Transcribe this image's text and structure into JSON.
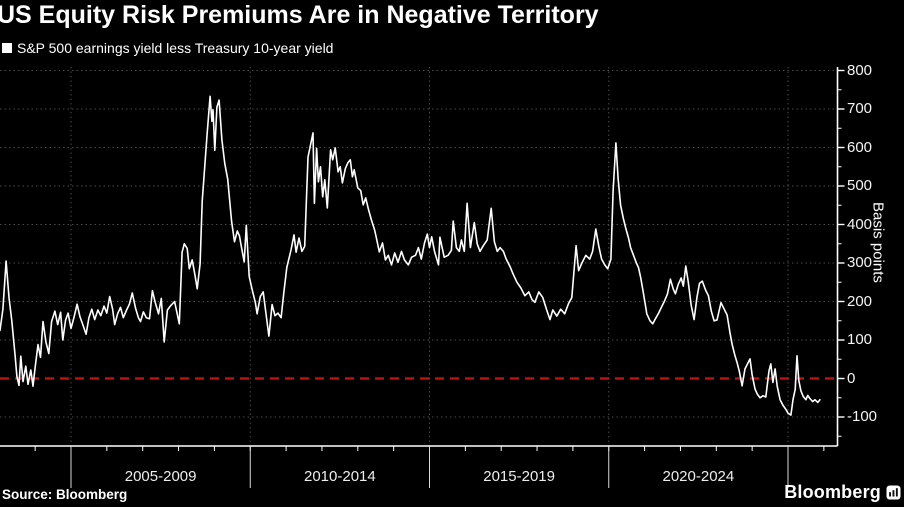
{
  "title": "US Equity Risk Premiums Are in Negative Territory",
  "legend": {
    "marker_icon": "square-swatch-icon",
    "label": "S&P 500 earnings yield less Treasury 10-year yield"
  },
  "source": "Source: Bloomberg",
  "brand": {
    "name": "Bloomberg",
    "icon": "bar-chart-logo-icon"
  },
  "colors": {
    "background": "#000000",
    "line": "#ffffff",
    "zero_line": "#bb1111",
    "gridline": "#4a4a4a",
    "axis": "#ffffff",
    "tick_label": "#f4f4f4",
    "period_separator": "#d9d9d9"
  },
  "chart_data": {
    "type": "line",
    "title": "US Equity Risk Premiums Are in Negative Territory",
    "series_name": "S&P 500 earnings yield less Treasury 10-year yield",
    "xlabel": "",
    "ylabel": "Basis points",
    "ylim": [
      -175,
      808
    ],
    "xlim_years": [
      2003.0,
      2026.4
    ],
    "yticks": [
      800,
      700,
      600,
      500,
      400,
      300,
      200,
      100,
      0,
      -100
    ],
    "y_minor_tick_step": 50,
    "x_period_labels": [
      "2005-2009",
      "2010-2014",
      "2015-2019",
      "2020-2024"
    ],
    "x_period_boundary_years": [
      2005,
      2010,
      2015,
      2020,
      2025
    ],
    "legend_position": "top-left",
    "grid": "dotted",
    "zero_line": {
      "value": 0,
      "style": "dashed",
      "color": "#bb1111"
    },
    "points": [
      [
        2003.02,
        125
      ],
      [
        2003.1,
        180
      ],
      [
        2003.19,
        305
      ],
      [
        2003.27,
        210
      ],
      [
        2003.35,
        150
      ],
      [
        2003.44,
        60
      ],
      [
        2003.49,
        5
      ],
      [
        2003.55,
        -18
      ],
      [
        2003.6,
        58
      ],
      [
        2003.66,
        -8
      ],
      [
        2003.74,
        32
      ],
      [
        2003.8,
        -15
      ],
      [
        2003.88,
        22
      ],
      [
        2003.94,
        -20
      ],
      [
        2004.0,
        28
      ],
      [
        2004.08,
        88
      ],
      [
        2004.15,
        55
      ],
      [
        2004.22,
        148
      ],
      [
        2004.3,
        95
      ],
      [
        2004.38,
        65
      ],
      [
        2004.46,
        148
      ],
      [
        2004.55,
        175
      ],
      [
        2004.63,
        140
      ],
      [
        2004.71,
        172
      ],
      [
        2004.77,
        100
      ],
      [
        2004.85,
        152
      ],
      [
        2004.92,
        170
      ],
      [
        2005.0,
        130
      ],
      [
        2005.08,
        158
      ],
      [
        2005.17,
        193
      ],
      [
        2005.25,
        160
      ],
      [
        2005.33,
        140
      ],
      [
        2005.42,
        115
      ],
      [
        2005.5,
        158
      ],
      [
        2005.58,
        180
      ],
      [
        2005.66,
        153
      ],
      [
        2005.75,
        178
      ],
      [
        2005.83,
        163
      ],
      [
        2005.92,
        188
      ],
      [
        2006.0,
        170
      ],
      [
        2006.08,
        213
      ],
      [
        2006.16,
        180
      ],
      [
        2006.22,
        140
      ],
      [
        2006.3,
        168
      ],
      [
        2006.38,
        185
      ],
      [
        2006.46,
        158
      ],
      [
        2006.55,
        178
      ],
      [
        2006.63,
        193
      ],
      [
        2006.71,
        222
      ],
      [
        2006.8,
        183
      ],
      [
        2006.88,
        158
      ],
      [
        2006.94,
        148
      ],
      [
        2007.02,
        173
      ],
      [
        2007.1,
        158
      ],
      [
        2007.19,
        155
      ],
      [
        2007.27,
        228
      ],
      [
        2007.35,
        198
      ],
      [
        2007.44,
        168
      ],
      [
        2007.52,
        208
      ],
      [
        2007.6,
        95
      ],
      [
        2007.69,
        178
      ],
      [
        2007.77,
        188
      ],
      [
        2007.89,
        200
      ],
      [
        2008.02,
        142
      ],
      [
        2008.1,
        328
      ],
      [
        2008.16,
        350
      ],
      [
        2008.24,
        338
      ],
      [
        2008.3,
        285
      ],
      [
        2008.38,
        308
      ],
      [
        2008.46,
        268
      ],
      [
        2008.52,
        233
      ],
      [
        2008.6,
        298
      ],
      [
        2008.66,
        460
      ],
      [
        2008.74,
        563
      ],
      [
        2008.8,
        638
      ],
      [
        2008.88,
        733
      ],
      [
        2008.93,
        668
      ],
      [
        2008.96,
        698
      ],
      [
        2009.01,
        593
      ],
      [
        2009.07,
        705
      ],
      [
        2009.13,
        723
      ],
      [
        2009.21,
        620
      ],
      [
        2009.29,
        558
      ],
      [
        2009.37,
        518
      ],
      [
        2009.48,
        408
      ],
      [
        2009.56,
        355
      ],
      [
        2009.64,
        383
      ],
      [
        2009.7,
        370
      ],
      [
        2009.75,
        343
      ],
      [
        2009.83,
        303
      ],
      [
        2009.89,
        398
      ],
      [
        2009.97,
        265
      ],
      [
        2010.06,
        228
      ],
      [
        2010.14,
        198
      ],
      [
        2010.19,
        168
      ],
      [
        2010.28,
        213
      ],
      [
        2010.36,
        225
      ],
      [
        2010.44,
        168
      ],
      [
        2010.52,
        110
      ],
      [
        2010.61,
        192
      ],
      [
        2010.69,
        163
      ],
      [
        2010.77,
        170
      ],
      [
        2010.86,
        158
      ],
      [
        2010.94,
        225
      ],
      [
        2011.02,
        288
      ],
      [
        2011.14,
        335
      ],
      [
        2011.22,
        373
      ],
      [
        2011.28,
        328
      ],
      [
        2011.36,
        365
      ],
      [
        2011.44,
        330
      ],
      [
        2011.52,
        343
      ],
      [
        2011.61,
        575
      ],
      [
        2011.75,
        638
      ],
      [
        2011.79,
        455
      ],
      [
        2011.85,
        598
      ],
      [
        2011.9,
        511
      ],
      [
        2011.96,
        550
      ],
      [
        2012.02,
        472
      ],
      [
        2012.08,
        516
      ],
      [
        2012.15,
        443
      ],
      [
        2012.24,
        594
      ],
      [
        2012.3,
        568
      ],
      [
        2012.37,
        599
      ],
      [
        2012.45,
        537
      ],
      [
        2012.51,
        550
      ],
      [
        2012.57,
        508
      ],
      [
        2012.65,
        545
      ],
      [
        2012.72,
        560
      ],
      [
        2012.79,
        568
      ],
      [
        2012.85,
        524
      ],
      [
        2012.9,
        542
      ],
      [
        2013.0,
        495
      ],
      [
        2013.08,
        488
      ],
      [
        2013.15,
        451
      ],
      [
        2013.22,
        469
      ],
      [
        2013.3,
        438
      ],
      [
        2013.38,
        412
      ],
      [
        2013.47,
        386
      ],
      [
        2013.52,
        365
      ],
      [
        2013.6,
        329
      ],
      [
        2013.69,
        352
      ],
      [
        2013.77,
        308
      ],
      [
        2013.85,
        320
      ],
      [
        2013.94,
        295
      ],
      [
        2014.03,
        326
      ],
      [
        2014.12,
        302
      ],
      [
        2014.22,
        330
      ],
      [
        2014.3,
        308
      ],
      [
        2014.41,
        295
      ],
      [
        2014.5,
        315
      ],
      [
        2014.61,
        320
      ],
      [
        2014.69,
        340
      ],
      [
        2014.77,
        310
      ],
      [
        2014.86,
        352
      ],
      [
        2014.94,
        375
      ],
      [
        2015.0,
        340
      ],
      [
        2015.06,
        368
      ],
      [
        2015.14,
        330
      ],
      [
        2015.25,
        295
      ],
      [
        2015.29,
        367
      ],
      [
        2015.41,
        315
      ],
      [
        2015.52,
        320
      ],
      [
        2015.61,
        333
      ],
      [
        2015.66,
        409
      ],
      [
        2015.75,
        340
      ],
      [
        2015.83,
        330
      ],
      [
        2015.89,
        360
      ],
      [
        2015.97,
        330
      ],
      [
        2016.05,
        455
      ],
      [
        2016.14,
        340
      ],
      [
        2016.25,
        405
      ],
      [
        2016.33,
        350
      ],
      [
        2016.41,
        330
      ],
      [
        2016.5,
        345
      ],
      [
        2016.61,
        360
      ],
      [
        2016.72,
        442
      ],
      [
        2016.81,
        355
      ],
      [
        2016.89,
        330
      ],
      [
        2016.97,
        340
      ],
      [
        2017.06,
        330
      ],
      [
        2017.14,
        310
      ],
      [
        2017.25,
        290
      ],
      [
        2017.33,
        272
      ],
      [
        2017.44,
        250
      ],
      [
        2017.55,
        235
      ],
      [
        2017.66,
        215
      ],
      [
        2017.77,
        225
      ],
      [
        2017.86,
        205
      ],
      [
        2017.94,
        198
      ],
      [
        2018.05,
        225
      ],
      [
        2018.16,
        210
      ],
      [
        2018.27,
        178
      ],
      [
        2018.36,
        153
      ],
      [
        2018.44,
        178
      ],
      [
        2018.55,
        162
      ],
      [
        2018.66,
        180
      ],
      [
        2018.77,
        168
      ],
      [
        2018.88,
        195
      ],
      [
        2018.97,
        210
      ],
      [
        2019.09,
        345
      ],
      [
        2019.16,
        280
      ],
      [
        2019.25,
        300
      ],
      [
        2019.36,
        320
      ],
      [
        2019.47,
        310
      ],
      [
        2019.55,
        330
      ],
      [
        2019.64,
        388
      ],
      [
        2019.72,
        345
      ],
      [
        2019.8,
        310
      ],
      [
        2019.89,
        295
      ],
      [
        2019.97,
        285
      ],
      [
        2020.06,
        310
      ],
      [
        2020.12,
        487
      ],
      [
        2020.2,
        612
      ],
      [
        2020.26,
        520
      ],
      [
        2020.33,
        450
      ],
      [
        2020.41,
        415
      ],
      [
        2020.47,
        392
      ],
      [
        2020.55,
        365
      ],
      [
        2020.61,
        340
      ],
      [
        2020.7,
        318
      ],
      [
        2020.77,
        300
      ],
      [
        2020.83,
        288
      ],
      [
        2020.89,
        262
      ],
      [
        2020.97,
        220
      ],
      [
        2021.06,
        168
      ],
      [
        2021.15,
        150
      ],
      [
        2021.23,
        142
      ],
      [
        2021.3,
        155
      ],
      [
        2021.39,
        170
      ],
      [
        2021.47,
        185
      ],
      [
        2021.55,
        200
      ],
      [
        2021.64,
        220
      ],
      [
        2021.72,
        258
      ],
      [
        2021.8,
        232
      ],
      [
        2021.86,
        220
      ],
      [
        2021.94,
        245
      ],
      [
        2022.02,
        261
      ],
      [
        2022.08,
        240
      ],
      [
        2022.15,
        292
      ],
      [
        2022.22,
        250
      ],
      [
        2022.3,
        190
      ],
      [
        2022.38,
        153
      ],
      [
        2022.46,
        210
      ],
      [
        2022.53,
        247
      ],
      [
        2022.61,
        253
      ],
      [
        2022.7,
        230
      ],
      [
        2022.78,
        215
      ],
      [
        2022.86,
        175
      ],
      [
        2022.94,
        150
      ],
      [
        2023.02,
        152
      ],
      [
        2023.13,
        197
      ],
      [
        2023.22,
        180
      ],
      [
        2023.3,
        165
      ],
      [
        2023.38,
        120
      ],
      [
        2023.44,
        89
      ],
      [
        2023.52,
        60
      ],
      [
        2023.58,
        41
      ],
      [
        2023.64,
        20
      ],
      [
        2023.72,
        -19
      ],
      [
        2023.8,
        25
      ],
      [
        2023.94,
        51
      ],
      [
        2024.0,
        10
      ],
      [
        2024.08,
        -27
      ],
      [
        2024.14,
        -40
      ],
      [
        2024.22,
        -50
      ],
      [
        2024.3,
        -45
      ],
      [
        2024.38,
        -48
      ],
      [
        2024.47,
        20
      ],
      [
        2024.52,
        38
      ],
      [
        2024.58,
        -10
      ],
      [
        2024.64,
        25
      ],
      [
        2024.7,
        -20
      ],
      [
        2024.78,
        -55
      ],
      [
        2024.86,
        -70
      ],
      [
        2024.94,
        -80
      ],
      [
        2025.0,
        -90
      ],
      [
        2025.08,
        -95
      ],
      [
        2025.14,
        -55
      ],
      [
        2025.2,
        -28
      ],
      [
        2025.25,
        59
      ],
      [
        2025.3,
        -5
      ],
      [
        2025.36,
        -32
      ],
      [
        2025.42,
        -46
      ],
      [
        2025.5,
        -55
      ],
      [
        2025.55,
        -44
      ],
      [
        2025.61,
        -52
      ],
      [
        2025.69,
        -60
      ],
      [
        2025.75,
        -55
      ],
      [
        2025.83,
        -62
      ],
      [
        2025.89,
        -55
      ]
    ]
  }
}
